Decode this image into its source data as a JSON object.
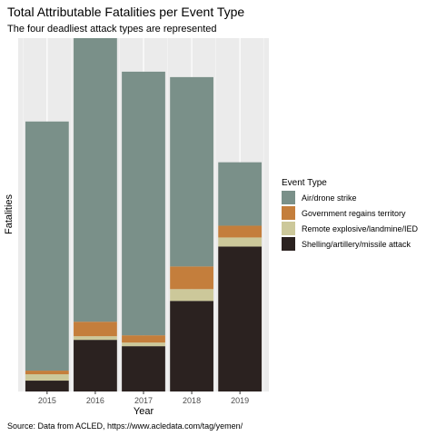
{
  "chart_data": {
    "type": "bar",
    "stacked": true,
    "title": "Total Attributable Fatalities per Event Type",
    "subtitle": "The four deadliest attack types are represented",
    "xlabel": "Year",
    "ylabel": "Fatalities",
    "caption": "Source: Data from ACLED, https://www.acledata.com/tag/yemen/",
    "categories": [
      "2015",
      "2016",
      "2017",
      "2018",
      "2019"
    ],
    "y_max": 390,
    "grid": true,
    "legend": {
      "title": "Event Type",
      "position": "right"
    },
    "series": [
      {
        "name": "Shelling/artillery/missile attack",
        "color": "#2b2220",
        "values": [
          12,
          57,
          50,
          100,
          160
        ]
      },
      {
        "name": "Remote explosive/landmine/IED",
        "color": "#ccc89a",
        "values": [
          7,
          4,
          4,
          13,
          10
        ]
      },
      {
        "name": "Government regains territory",
        "color": "#c47e3c",
        "values": [
          4,
          16,
          8,
          25,
          13
        ]
      },
      {
        "name": "Air/drone strike",
        "color": "#7a9089",
        "values": [
          275,
          313,
          291,
          209,
          70
        ]
      }
    ],
    "legend_order": [
      3,
      2,
      1,
      0
    ]
  }
}
